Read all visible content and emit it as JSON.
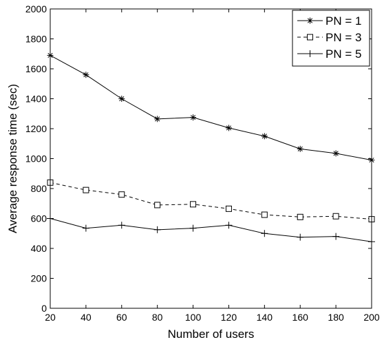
{
  "chart_data": {
    "type": "line",
    "x": [
      20,
      40,
      60,
      80,
      100,
      120,
      140,
      160,
      180,
      200
    ],
    "xlabel": "Number of users",
    "ylabel": "Average response time (sec)",
    "xlim": [
      20,
      200
    ],
    "ylim": [
      0,
      2000
    ],
    "xticks": [
      20,
      40,
      60,
      80,
      100,
      120,
      140,
      160,
      180,
      200
    ],
    "yticks": [
      0,
      200,
      400,
      600,
      800,
      1000,
      1200,
      1400,
      1600,
      1800,
      2000
    ],
    "grid": false,
    "legend_position": "top-right",
    "series": [
      {
        "name": "PN = 1",
        "marker": "asterisk",
        "line": "solid",
        "values": [
          1690,
          1560,
          1400,
          1265,
          1275,
          1205,
          1150,
          1065,
          1035,
          990
        ]
      },
      {
        "name": "PN = 3",
        "marker": "square",
        "line": "dashed",
        "values": [
          840,
          790,
          760,
          690,
          695,
          665,
          625,
          610,
          615,
          595
        ]
      },
      {
        "name": "PN = 5",
        "marker": "plus",
        "line": "solid",
        "values": [
          600,
          535,
          555,
          525,
          535,
          555,
          500,
          475,
          480,
          445
        ]
      }
    ]
  }
}
